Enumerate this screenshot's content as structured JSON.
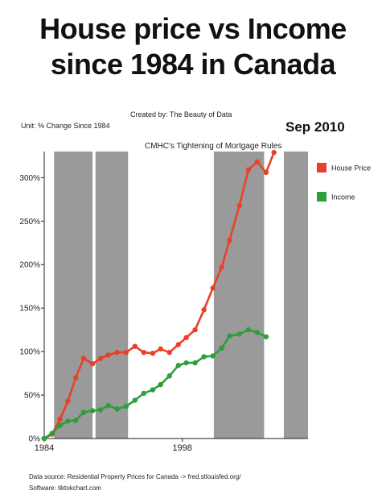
{
  "headline": [
    "House price vs Income",
    "since 1984 in Canada"
  ],
  "credit": "Created by: The Beauty of Data",
  "unit_label": "Unit: % Change Since 1984",
  "date_stamp": "Sep 2010",
  "annotation": "CMHC's Tightening of Mortgage Rules",
  "footer": {
    "source": "Data source: Residential Property Prices for Canada -> fred.stlouisfed.org/",
    "software": "Software: tiktokchart.com"
  },
  "chart_data": {
    "type": "line",
    "x_ticks": [
      "1984",
      "1998"
    ],
    "x_tick_values": [
      1984,
      1998
    ],
    "y_ticks": [
      "0%",
      "50%",
      "100%",
      "150%",
      "200%",
      "250%",
      "300%"
    ],
    "y_tick_values": [
      0,
      50,
      100,
      150,
      200,
      250,
      300
    ],
    "xlim": [
      1984,
      2010.75
    ],
    "ylim": [
      0,
      330
    ],
    "grid": false,
    "legend_position": "right",
    "shaded_periods": [
      [
        1985.0,
        1988.9
      ],
      [
        1989.2,
        1992.5
      ],
      [
        2001.2,
        2006.3
      ],
      [
        2008.3,
        2010.75
      ]
    ],
    "series": [
      {
        "name": "House Price",
        "color": "#e8412a",
        "points": [
          [
            1984.0,
            0
          ],
          [
            1984.8,
            5
          ],
          [
            1985.6,
            22
          ],
          [
            1986.4,
            43
          ],
          [
            1987.2,
            70
          ],
          [
            1988.0,
            92
          ],
          [
            1988.9,
            86
          ],
          [
            1989.7,
            92
          ],
          [
            1990.5,
            96
          ],
          [
            1991.4,
            99
          ],
          [
            1992.3,
            99
          ],
          [
            1993.2,
            106
          ],
          [
            1994.1,
            99
          ],
          [
            1995.0,
            98
          ],
          [
            1995.8,
            103
          ],
          [
            1996.7,
            99
          ],
          [
            1997.6,
            108
          ],
          [
            1998.4,
            116
          ],
          [
            1999.3,
            125
          ],
          [
            2000.2,
            148
          ],
          [
            2001.1,
            173
          ],
          [
            2002.0,
            197
          ],
          [
            2002.8,
            228
          ],
          [
            2003.8,
            268
          ],
          [
            2004.7,
            309
          ],
          [
            2005.6,
            318
          ],
          [
            2006.5,
            306
          ],
          [
            2007.3,
            329
          ]
        ]
      },
      {
        "name": "Income",
        "color": "#2e9e3a",
        "points": [
          [
            1984.0,
            0
          ],
          [
            1984.8,
            6
          ],
          [
            1985.6,
            15
          ],
          [
            1986.4,
            20
          ],
          [
            1987.2,
            21
          ],
          [
            1988.0,
            30
          ],
          [
            1988.9,
            32
          ],
          [
            1989.7,
            33
          ],
          [
            1990.5,
            38
          ],
          [
            1991.4,
            34
          ],
          [
            1992.3,
            37
          ],
          [
            1993.2,
            44
          ],
          [
            1994.1,
            52
          ],
          [
            1995.0,
            56
          ],
          [
            1995.8,
            62
          ],
          [
            1996.7,
            72
          ],
          [
            1997.6,
            84
          ],
          [
            1998.4,
            87
          ],
          [
            1999.3,
            87
          ],
          [
            2000.2,
            94
          ],
          [
            2001.1,
            95
          ],
          [
            2002.0,
            104
          ],
          [
            2002.8,
            118
          ],
          [
            2003.8,
            120
          ],
          [
            2004.7,
            125
          ],
          [
            2005.6,
            122
          ],
          [
            2006.5,
            117
          ]
        ]
      }
    ]
  }
}
